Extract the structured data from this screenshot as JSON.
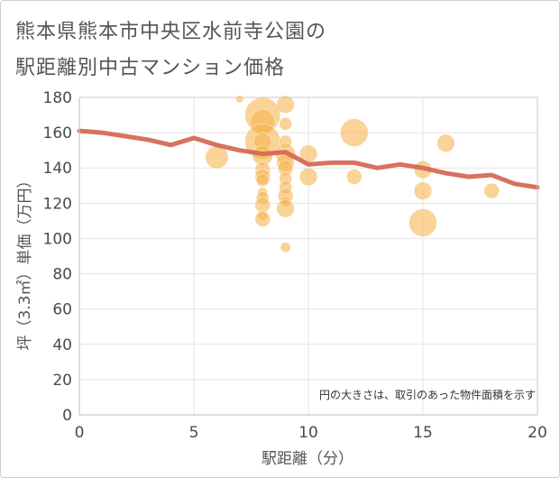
{
  "title_line1": "熊本県熊本市中央区水前寺公園の",
  "title_line2": "駅距離別中古マンション価格",
  "chart_data": {
    "type": "scatter",
    "title": "熊本県熊本市中央区水前寺公園の駅距離別中古マンション価格",
    "xlabel": "駅距離（分）",
    "ylabel": "坪（3.3㎡）単価（万円）",
    "xlim": [
      0,
      20
    ],
    "ylim": [
      0,
      180
    ],
    "xticks": [
      0,
      5,
      10,
      15,
      20
    ],
    "yticks": [
      0,
      20,
      40,
      60,
      80,
      100,
      120,
      140,
      160,
      180
    ],
    "note": "円の大きさは、取引のあった物件面積を示す",
    "colors": {
      "bubble": "#f5b552",
      "line": "#d46a55",
      "axis": "#c9c9c9",
      "grid": "#e5e5e5"
    },
    "bubbles": [
      {
        "x": 7,
        "y": 179,
        "size": 3
      },
      {
        "x": 8,
        "y": 170,
        "size": 14
      },
      {
        "x": 8,
        "y": 166,
        "size": 10
      },
      {
        "x": 8,
        "y": 155,
        "size": 14
      },
      {
        "x": 8,
        "y": 155,
        "size": 7
      },
      {
        "x": 8,
        "y": 147,
        "size": 8
      },
      {
        "x": 8,
        "y": 139,
        "size": 6
      },
      {
        "x": 8,
        "y": 135,
        "size": 6
      },
      {
        "x": 8,
        "y": 133,
        "size": 5
      },
      {
        "x": 8,
        "y": 126,
        "size": 4
      },
      {
        "x": 8,
        "y": 123,
        "size": 5
      },
      {
        "x": 8,
        "y": 119,
        "size": 6
      },
      {
        "x": 8,
        "y": 113,
        "size": 4
      },
      {
        "x": 8,
        "y": 111,
        "size": 6
      },
      {
        "x": 9,
        "y": 176,
        "size": 7
      },
      {
        "x": 9,
        "y": 165,
        "size": 5
      },
      {
        "x": 9,
        "y": 155,
        "size": 5
      },
      {
        "x": 9,
        "y": 148,
        "size": 8
      },
      {
        "x": 9,
        "y": 143,
        "size": 7
      },
      {
        "x": 9,
        "y": 140,
        "size": 6
      },
      {
        "x": 9,
        "y": 134,
        "size": 5
      },
      {
        "x": 9,
        "y": 129,
        "size": 5
      },
      {
        "x": 9,
        "y": 124,
        "size": 6
      },
      {
        "x": 9,
        "y": 121,
        "size": 4
      },
      {
        "x": 9,
        "y": 117,
        "size": 7
      },
      {
        "x": 9,
        "y": 95,
        "size": 4
      },
      {
        "x": 6,
        "y": 146,
        "size": 9
      },
      {
        "x": 10,
        "y": 148,
        "size": 7
      },
      {
        "x": 10,
        "y": 135,
        "size": 7
      },
      {
        "x": 12,
        "y": 160,
        "size": 11
      },
      {
        "x": 12,
        "y": 135,
        "size": 6
      },
      {
        "x": 15,
        "y": 139,
        "size": 7
      },
      {
        "x": 15,
        "y": 127,
        "size": 7
      },
      {
        "x": 15,
        "y": 109,
        "size": 11
      },
      {
        "x": 16,
        "y": 154,
        "size": 7
      },
      {
        "x": 18,
        "y": 127,
        "size": 6
      }
    ],
    "line": {
      "x": [
        0,
        1,
        2,
        3,
        4,
        5,
        6,
        7,
        8,
        9,
        10,
        11,
        12,
        13,
        14,
        15,
        16,
        17,
        18,
        19,
        20
      ],
      "y": [
        161,
        160,
        158,
        156,
        153,
        157,
        153,
        150,
        148,
        149,
        142,
        143,
        143,
        140,
        142,
        140,
        137,
        135,
        136,
        131,
        129
      ]
    }
  }
}
